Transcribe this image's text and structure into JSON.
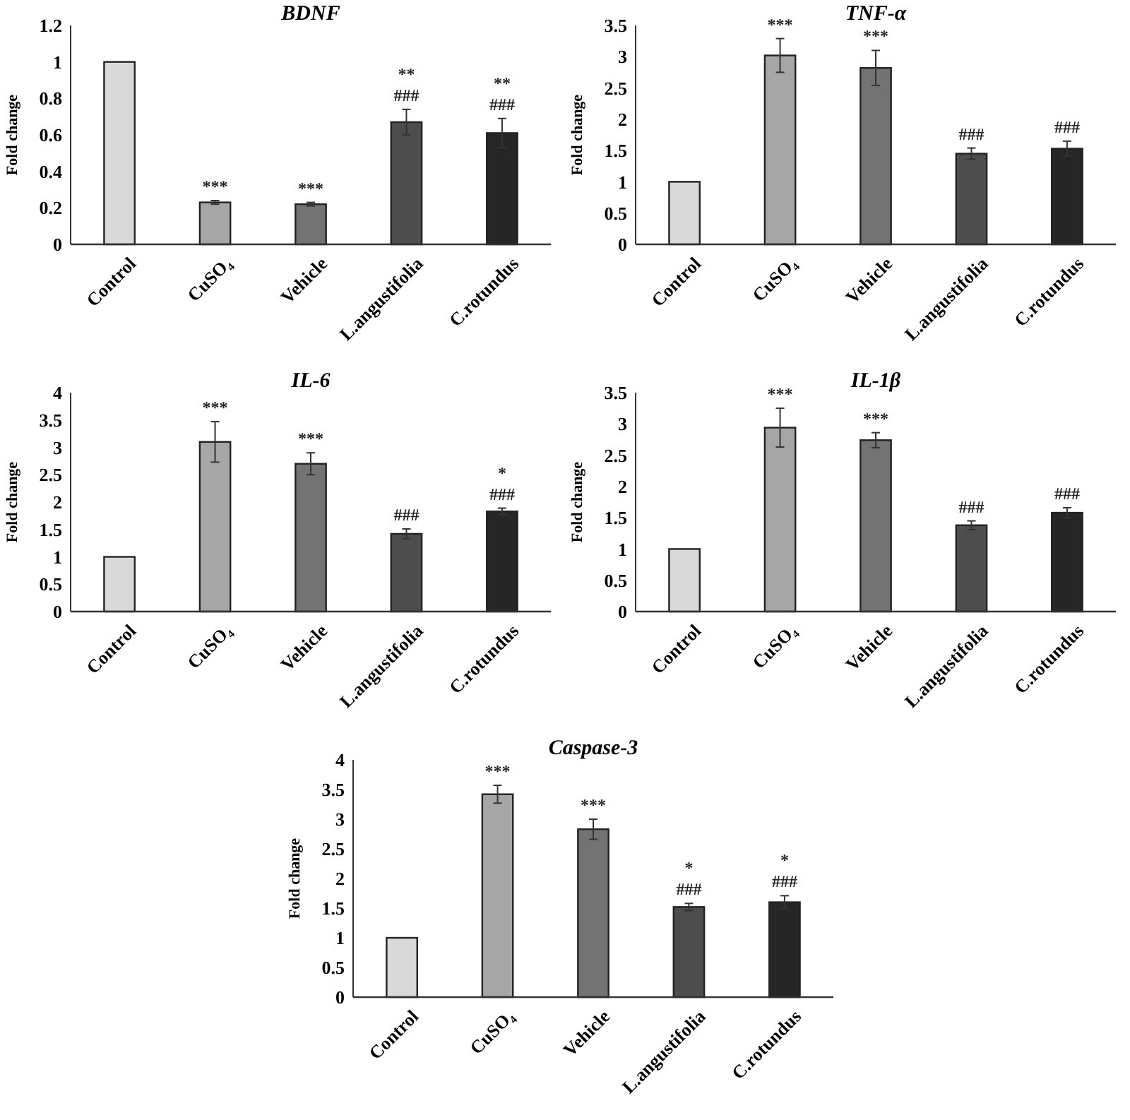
{
  "chart_data": [
    {
      "type": "bar",
      "title": "BDNF",
      "ylabel": "Fold change",
      "categories": [
        "Control",
        "CuSO₄",
        "Vehicle",
        "L.angustifolia",
        "C.rotundus"
      ],
      "values": [
        1,
        0.23,
        0.22,
        0.67,
        0.61
      ],
      "errors": [
        null,
        0.01,
        0.01,
        0.07,
        0.08
      ],
      "colors": [
        "#d9d9d9",
        "#a6a6a6",
        "#737373",
        "#4d4d4d",
        "#262626"
      ],
      "ylim": [
        0,
        1.2
      ],
      "yticks": [
        0,
        0.2,
        0.4,
        0.6,
        0.8,
        1,
        1.2
      ],
      "grid": false,
      "annotations": [
        {
          "text": "***",
          "x": "CuSO₄",
          "y": 0.23
        },
        {
          "text": "***",
          "x": "Vehicle",
          "y": 0.22
        },
        {
          "text": "###",
          "x": "L.angustifolia",
          "y": 0.67
        },
        {
          "text": "**",
          "x": "L.angustifolia",
          "y": 0.67
        },
        {
          "text": "###",
          "x": "C.rotundus",
          "y": 0.61
        },
        {
          "text": "**",
          "x": "C.rotundus",
          "y": 0.61
        }
      ]
    },
    {
      "type": "bar",
      "title": "TNF-α",
      "ylabel": "Fold change",
      "categories": [
        "Control",
        "CuSO₄",
        "Vehicle",
        "L.angustifolia",
        "C.rotundus"
      ],
      "values": [
        1,
        3.02,
        2.82,
        1.45,
        1.53
      ],
      "errors": [
        null,
        0.27,
        0.28,
        0.09,
        0.12
      ],
      "colors": [
        "#d9d9d9",
        "#a6a6a6",
        "#737373",
        "#4d4d4d",
        "#262626"
      ],
      "ylim": [
        0,
        3.5
      ],
      "yticks": [
        0,
        0.5,
        1,
        1.5,
        2,
        2.5,
        3,
        3.5
      ],
      "grid": false,
      "annotations": [
        {
          "text": "***",
          "x": "CuSO₄",
          "y": 3.02
        },
        {
          "text": "***",
          "x": "Vehicle",
          "y": 2.82
        },
        {
          "text": "###",
          "x": "L.angustifolia",
          "y": 1.45
        },
        {
          "text": "###",
          "x": "C.rotundus",
          "y": 1.53
        }
      ]
    },
    {
      "type": "bar",
      "title": "IL-6",
      "ylabel": "Fold change",
      "categories": [
        "Control",
        "CuSO₄",
        "Vehicle",
        "L.angustifolia",
        "C.rotundus"
      ],
      "values": [
        1,
        3.1,
        2.7,
        1.42,
        1.83
      ],
      "errors": [
        null,
        0.37,
        0.2,
        0.09,
        0.06
      ],
      "colors": [
        "#d9d9d9",
        "#a6a6a6",
        "#737373",
        "#4d4d4d",
        "#262626"
      ],
      "ylim": [
        0,
        4
      ],
      "yticks": [
        0,
        0.5,
        1,
        1.5,
        2,
        2.5,
        3,
        3.5,
        4
      ],
      "grid": false,
      "annotations": [
        {
          "text": "***",
          "x": "CuSO₄",
          "y": 3.1
        },
        {
          "text": "***",
          "x": "Vehicle",
          "y": 2.7
        },
        {
          "text": "###",
          "x": "L.angustifolia",
          "y": 1.42
        },
        {
          "text": "###",
          "x": "C.rotundus",
          "y": 1.83
        },
        {
          "text": "*",
          "x": "C.rotundus",
          "y": 1.83
        }
      ]
    },
    {
      "type": "bar",
      "title": "IL-1β",
      "ylabel": "Fold change",
      "categories": [
        "Control",
        "CuSO₄",
        "Vehicle",
        "L.angustifolia",
        "C.rotundus"
      ],
      "values": [
        1,
        2.94,
        2.74,
        1.38,
        1.58
      ],
      "errors": [
        null,
        0.31,
        0.12,
        0.07,
        0.08
      ],
      "colors": [
        "#d9d9d9",
        "#a6a6a6",
        "#737373",
        "#4d4d4d",
        "#262626"
      ],
      "ylim": [
        0,
        3.5
      ],
      "yticks": [
        0,
        0.5,
        1,
        1.5,
        2,
        2.5,
        3,
        3.5
      ],
      "grid": false,
      "annotations": [
        {
          "text": "***",
          "x": "CuSO₄",
          "y": 2.94
        },
        {
          "text": "***",
          "x": "Vehicle",
          "y": 2.74
        },
        {
          "text": "###",
          "x": "L.angustifolia",
          "y": 1.38
        },
        {
          "text": "###",
          "x": "C.rotundus",
          "y": 1.58
        }
      ]
    },
    {
      "type": "bar",
      "title": "Caspase-3",
      "ylabel": "Fold change",
      "categories": [
        "Control",
        "CuSO₄",
        "Vehicle",
        "L.angustifolia",
        "C.rotundus"
      ],
      "values": [
        1,
        3.42,
        2.83,
        1.52,
        1.6
      ],
      "errors": [
        null,
        0.15,
        0.17,
        0.06,
        0.11
      ],
      "colors": [
        "#d9d9d9",
        "#a6a6a6",
        "#737373",
        "#4d4d4d",
        "#262626"
      ],
      "ylim": [
        0,
        4
      ],
      "yticks": [
        0,
        0.5,
        1,
        1.5,
        2,
        2.5,
        3,
        3.5,
        4
      ],
      "grid": false,
      "annotations": [
        {
          "text": "***",
          "x": "CuSO₄",
          "y": 3.42
        },
        {
          "text": "***",
          "x": "Vehicle",
          "y": 2.83
        },
        {
          "text": "###",
          "x": "L.angustifolia",
          "y": 1.52
        },
        {
          "text": "*",
          "x": "L.angustifolia",
          "y": 1.52
        },
        {
          "text": "###",
          "x": "C.rotundus",
          "y": 1.6
        },
        {
          "text": "*",
          "x": "C.rotundus",
          "y": 1.6
        }
      ]
    }
  ]
}
